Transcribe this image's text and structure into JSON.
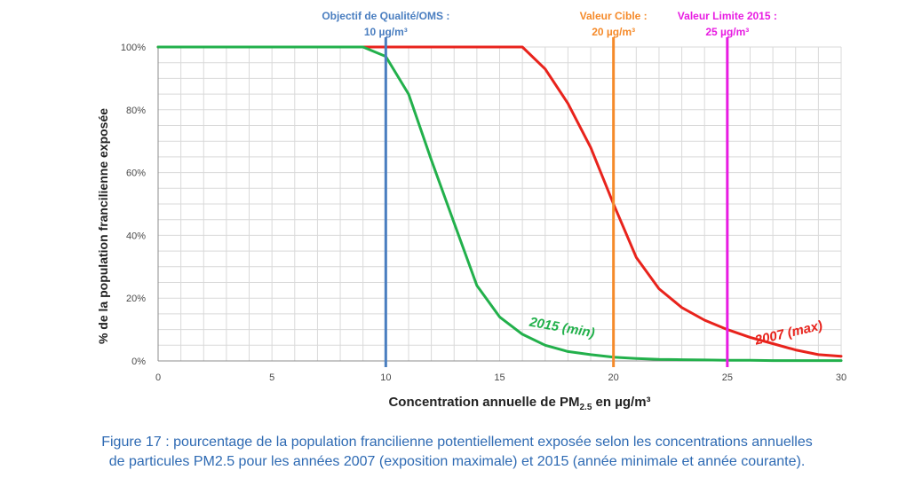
{
  "chart_data": {
    "type": "line",
    "xlabel": "Concentration annuelle de PM",
    "xlabel_sub": "2.5",
    "xlabel_suffix": " en µg/m³",
    "ylabel": "% de la population francilienne exposée",
    "xlim": [
      0,
      30
    ],
    "ylim": [
      0,
      100
    ],
    "x_ticks": [
      0,
      5,
      10,
      15,
      20,
      25,
      30
    ],
    "y_ticks": [
      0,
      20,
      40,
      60,
      80,
      100
    ],
    "y_tick_suffix": "%",
    "grid": true,
    "series": [
      {
        "name": "2007 (max)",
        "color": "#e8231c",
        "x": [
          0,
          1,
          2,
          3,
          4,
          5,
          6,
          7,
          8,
          9,
          10,
          11,
          12,
          13,
          14,
          15,
          16,
          17,
          18,
          19,
          20,
          21,
          22,
          23,
          24,
          25,
          26,
          27,
          28,
          29,
          30
        ],
        "y": [
          100,
          100,
          100,
          100,
          100,
          100,
          100,
          100,
          100,
          100,
          100,
          100,
          100,
          100,
          100,
          100,
          100,
          93,
          82,
          68,
          50,
          33,
          23,
          17,
          13,
          10,
          7.5,
          5.5,
          3.5,
          2,
          1.5
        ]
      },
      {
        "name": "2015 (min)",
        "color": "#22b04b",
        "x": [
          0,
          1,
          2,
          3,
          4,
          5,
          6,
          7,
          8,
          9,
          10,
          11,
          12,
          13,
          14,
          15,
          16,
          17,
          18,
          19,
          20,
          21,
          22,
          23,
          24,
          25,
          26,
          27,
          28,
          29,
          30
        ],
        "y": [
          100,
          100,
          100,
          100,
          100,
          100,
          100,
          100,
          100,
          100,
          97,
          85,
          64,
          44,
          24,
          14,
          8.5,
          5,
          3,
          2,
          1.2,
          0.8,
          0.5,
          0.4,
          0.3,
          0.2,
          0.2,
          0.1,
          0.1,
          0.1,
          0.1
        ]
      }
    ],
    "reference_lines": [
      {
        "x": 10,
        "color": "#4a7ec0",
        "label_line1": "Objectif de Qualité/OMS :",
        "label_line2": "10 µg/m³"
      },
      {
        "x": 20,
        "color": "#f58a2a",
        "label_line1": "Valeur Cible :",
        "label_line2": "20 µg/m³"
      },
      {
        "x": 25,
        "color": "#e81ce2",
        "label_line1": "Valeur Limite 2015 :",
        "label_line2": "25 µg/m³"
      }
    ]
  },
  "caption": {
    "line1": "Figure 17 : pourcentage de la population francilienne potentiellement exposée selon les concentrations annuelles",
    "line2": "de particules PM2.5 pour les années 2007 (exposition maximale) et 2015 (année minimale et année courante)."
  }
}
